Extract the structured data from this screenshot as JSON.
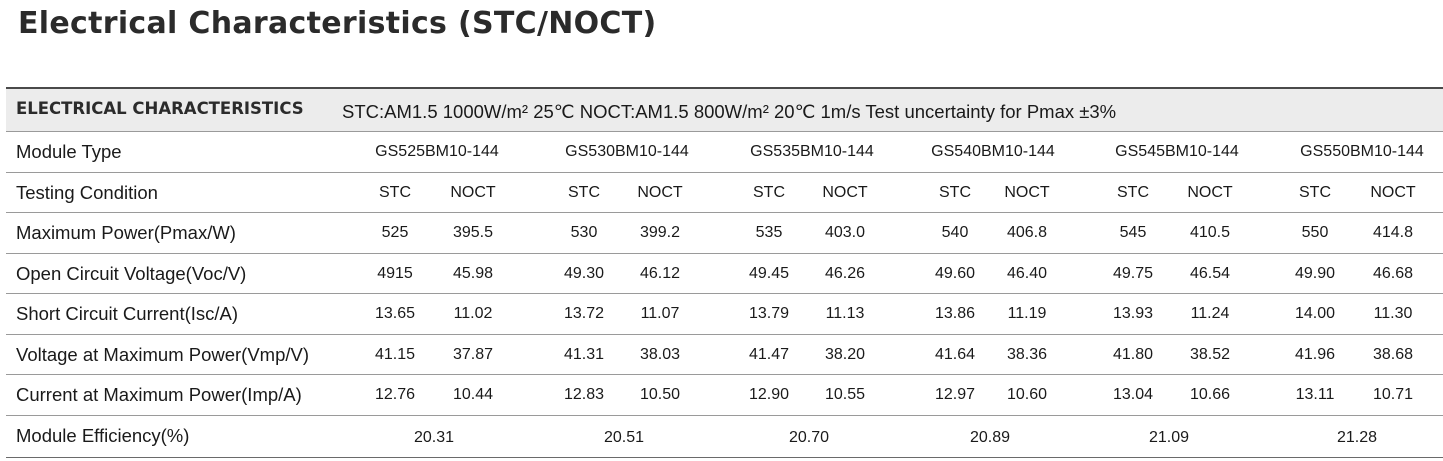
{
  "title": "Electrical Characteristics (STC/NOCT)",
  "table": {
    "header_title": "ELECTRICAL CHARACTERISTICS",
    "header_conditions": "STC:AM1.5 1000W/m² 25℃   NOCT:AM1.5 800W/m² 20℃  1m/s  Test uncertainty for Pmax ±3%",
    "module_type": {
      "label": "Module Type",
      "values": [
        "GS525BM10-144",
        "GS530BM10-144",
        "GS535BM10-144",
        "GS540BM10-144",
        "GS545BM10-144",
        "GS550BM10-144"
      ]
    },
    "testing_condition": {
      "label": "Testing Condition",
      "values": [
        "STC",
        "NOCT",
        "STC",
        "NOCT",
        "STC",
        "NOCT",
        "STC",
        "NOCT",
        "STC",
        "NOCT",
        "STC",
        "NOCT"
      ]
    },
    "rows": [
      {
        "label": "Maximum Power(Pmax/W)",
        "values": [
          "525",
          "395.5",
          "530",
          "399.2",
          "535",
          "403.0",
          "540",
          "406.8",
          "545",
          "410.5",
          "550",
          "414.8"
        ]
      },
      {
        "label": "Open Circuit Voltage(Voc/V)",
        "values": [
          "4915",
          "45.98",
          "49.30",
          "46.12",
          "49.45",
          "46.26",
          "49.60",
          "46.40",
          "49.75",
          "46.54",
          "49.90",
          "46.68"
        ]
      },
      {
        "label": "Short Circuit Current(Isc/A)",
        "values": [
          "13.65",
          "11.02",
          "13.72",
          "11.07",
          "13.79",
          "11.13",
          "13.86",
          "11.19",
          "13.93",
          "11.24",
          "14.00",
          "11.30"
        ]
      },
      {
        "label": "Voltage at Maximum Power(Vmp/V)",
        "values": [
          "41.15",
          "37.87",
          "41.31",
          "38.03",
          "41.47",
          "38.20",
          "41.64",
          "38.36",
          "41.80",
          "38.52",
          "41.96",
          "38.68"
        ]
      },
      {
        "label": "Current at Maximum Power(Imp/A)",
        "values": [
          "12.76",
          "10.44",
          "12.83",
          "10.50",
          "12.90",
          "10.55",
          "12.97",
          "10.60",
          "13.04",
          "10.66",
          "13.11",
          "10.71"
        ]
      }
    ],
    "efficiency": {
      "label": "Module Efficiency(%)",
      "values": [
        "20.31",
        "20.51",
        "20.70",
        "20.89",
        "21.09",
        "21.28"
      ]
    }
  }
}
